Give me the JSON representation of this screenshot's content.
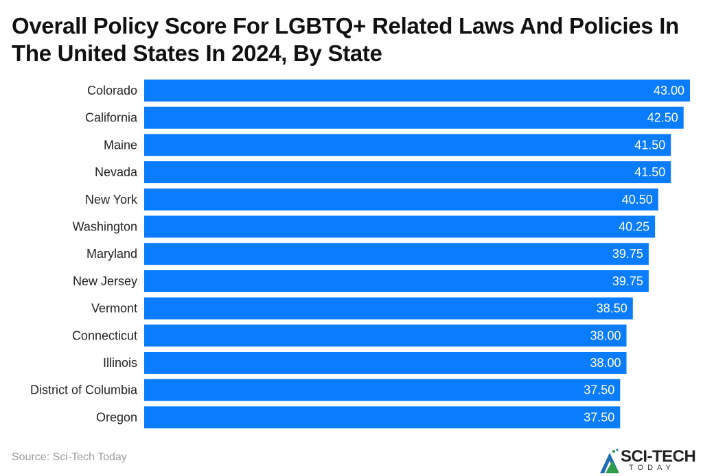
{
  "title": "Overall Policy Score For LGBTQ+ Related Laws And Policies In The United States In 2024, By State",
  "source": "Source: Sci-Tech Today",
  "logo": {
    "main": "SCI-TECH",
    "sub": "TODAY"
  },
  "chart_data": {
    "type": "bar",
    "orientation": "horizontal",
    "title": "Overall Policy Score For LGBTQ+ Related Laws And Policies In The United States In 2024, By State",
    "categories": [
      "Colorado",
      "California",
      "Maine",
      "Nevada",
      "New York",
      "Washington",
      "Maryland",
      "New Jersey",
      "Vermont",
      "Connecticut",
      "Illinois",
      "District of Columbia",
      "Oregon"
    ],
    "values": [
      43.0,
      42.5,
      41.5,
      41.5,
      40.5,
      40.25,
      39.75,
      39.75,
      38.5,
      38.0,
      38.0,
      37.5,
      37.5
    ],
    "value_labels": [
      "43.00",
      "42.50",
      "41.50",
      "41.50",
      "40.50",
      "40.25",
      "39.75",
      "39.75",
      "38.50",
      "38.00",
      "38.00",
      "37.50",
      "37.50"
    ],
    "xlim": [
      0,
      43
    ],
    "grid": false,
    "bar_color": "#0a7cff",
    "label_color": "#ffffff"
  }
}
